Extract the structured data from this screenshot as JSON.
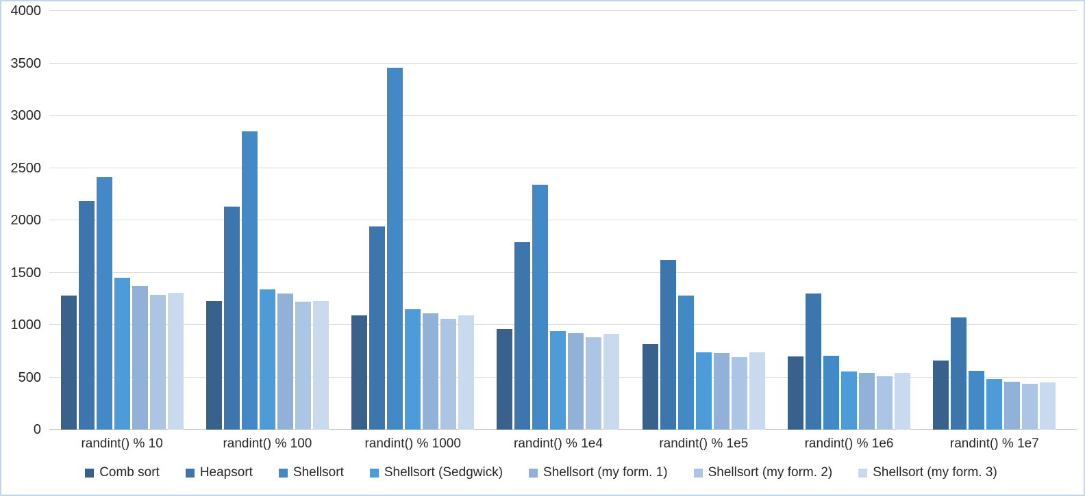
{
  "chart_data": {
    "type": "bar",
    "title": "",
    "xlabel": "",
    "ylabel": "",
    "ylim": [
      0,
      4000
    ],
    "ytick_step": 500,
    "grid": true,
    "legend_position": "bottom",
    "categories": [
      "randint() % 10",
      "randint() % 100",
      "randint() % 1000",
      "randint() % 1e4",
      "randint() % 1e5",
      "randint() % 1e6",
      "randint() % 1e7"
    ],
    "series": [
      {
        "name": "Comb sort",
        "color": "#38618c",
        "values": [
          1280,
          1230,
          1090,
          960,
          820,
          700,
          660
        ]
      },
      {
        "name": "Heapsort",
        "color": "#3d76ac",
        "values": [
          2180,
          2130,
          1940,
          1790,
          1620,
          1300,
          1070
        ]
      },
      {
        "name": "Shellsort",
        "color": "#4389c6",
        "values": [
          2410,
          2850,
          3460,
          2340,
          1280,
          705,
          560
        ]
      },
      {
        "name": "Shellsort (Sedgwick)",
        "color": "#4d9cd9",
        "values": [
          1450,
          1340,
          1150,
          940,
          740,
          555,
          485
        ]
      },
      {
        "name": "Shellsort (my form. 1)",
        "color": "#92b1d8",
        "values": [
          1370,
          1300,
          1110,
          920,
          730,
          545,
          455
        ]
      },
      {
        "name": "Shellsort (my form. 2)",
        "color": "#adc5e4",
        "values": [
          1290,
          1220,
          1060,
          880,
          690,
          510,
          440
        ]
      },
      {
        "name": "Shellsort (my form. 3)",
        "color": "#cadaee",
        "values": [
          1310,
          1230,
          1090,
          915,
          740,
          540,
          450
        ]
      }
    ]
  }
}
